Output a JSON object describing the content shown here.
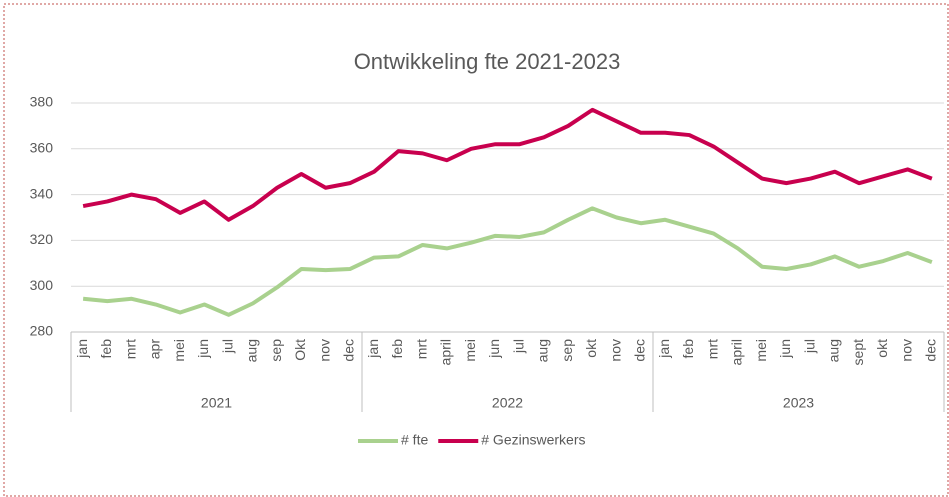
{
  "chart_data": {
    "type": "line",
    "title": "Ontwikkeling fte 2021-2023",
    "categories": [
      "jan",
      "feb",
      "mrt",
      "apr",
      "mei",
      "jun",
      "jul",
      "aug",
      "sep",
      "Okt",
      "nov",
      "dec",
      "jan",
      "feb",
      "mrt",
      "april",
      "mei",
      "jun",
      "jul",
      "aug",
      "sep",
      "okt",
      "nov",
      "dec",
      "jan",
      "feb",
      "mrt",
      "april",
      "mei",
      "jun",
      "jul",
      "aug",
      "sept",
      "okt",
      "nov",
      "dec"
    ],
    "x_groups": [
      "2021",
      "2022",
      "2023"
    ],
    "series": [
      {
        "name": "# fte",
        "color": "#a9d18e",
        "values": [
          294.5,
          293.5,
          294.5,
          292,
          288.5,
          292,
          287.5,
          292.5,
          299.5,
          307.5,
          307,
          307.5,
          312.5,
          313,
          318,
          316.5,
          319,
          322,
          321.5,
          323.5,
          329,
          334,
          330,
          327.5,
          329,
          326,
          323,
          316.5,
          308.5,
          307.5,
          309.5,
          313,
          308.5,
          311,
          314.5,
          310.5
        ]
      },
      {
        "name": "# Gezinswerkers",
        "color": "#c8004e",
        "values": [
          335,
          337,
          340,
          338,
          332,
          337,
          329,
          335,
          343,
          349,
          343,
          345,
          350,
          359,
          358,
          355,
          360,
          362,
          362,
          365,
          370,
          377,
          372,
          367,
          367,
          366,
          361,
          354,
          347,
          345,
          347,
          350,
          345,
          348,
          351,
          347
        ]
      }
    ],
    "ylim": [
      280,
      380
    ],
    "yticks": [
      280,
      300,
      320,
      340,
      360,
      380
    ],
    "grid": true,
    "legend": "bottom"
  }
}
